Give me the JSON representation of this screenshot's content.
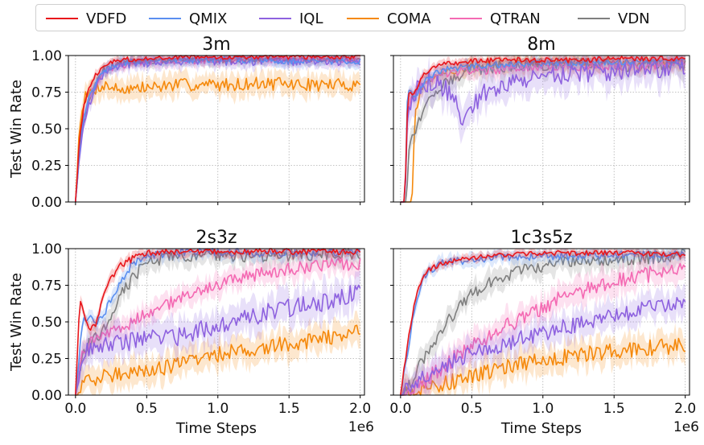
{
  "legend": [
    {
      "name": "VDFD",
      "color": "#e8161b"
    },
    {
      "name": "QMIX",
      "color": "#5b8ff0"
    },
    {
      "name": "IQL",
      "color": "#8e62df"
    },
    {
      "name": "COMA",
      "color": "#f5890c"
    },
    {
      "name": "QTRAN",
      "color": "#f46ab3"
    },
    {
      "name": "VDN",
      "color": "#7f7f7f"
    }
  ],
  "chart_data": [
    {
      "type": "line",
      "title": "3m",
      "xlabel": "",
      "ylabel": "Test Win Rate",
      "xlim": [
        -0.05,
        2.03
      ],
      "ylim": [
        0,
        1
      ],
      "xticks": [
        0,
        0.5,
        1,
        1.5,
        2
      ],
      "yticks": [
        0,
        0.25,
        0.5,
        0.75,
        1
      ],
      "ytick_labels": [
        "0.00",
        "0.25",
        "0.50",
        "0.75",
        "1.00"
      ],
      "series": [
        {
          "name": "COMA",
          "x": [
            0,
            0.03,
            0.06,
            0.1,
            0.15,
            0.2,
            0.3,
            0.5,
            0.7,
            1,
            1.3,
            1.6,
            2
          ],
          "y": [
            0,
            0.55,
            0.7,
            0.74,
            0.78,
            0.8,
            0.77,
            0.78,
            0.8,
            0.8,
            0.81,
            0.8,
            0.8
          ],
          "band": 0.08
        },
        {
          "name": "VDN",
          "x": [
            0,
            0.03,
            0.06,
            0.1,
            0.15,
            0.2,
            0.3,
            0.5,
            0.7,
            1,
            1.3,
            1.6,
            2
          ],
          "y": [
            0,
            0.35,
            0.55,
            0.7,
            0.82,
            0.9,
            0.95,
            0.96,
            0.97,
            0.97,
            0.98,
            0.97,
            0.98
          ],
          "band": 0.04
        },
        {
          "name": "QTRAN",
          "x": [
            0,
            0.03,
            0.06,
            0.1,
            0.15,
            0.2,
            0.3,
            0.5,
            0.7,
            1,
            1.3,
            1.6,
            2
          ],
          "y": [
            0,
            0.4,
            0.6,
            0.72,
            0.82,
            0.88,
            0.93,
            0.96,
            0.96,
            0.97,
            0.97,
            0.97,
            0.97
          ],
          "band": 0.04
        },
        {
          "name": "IQL",
          "x": [
            0,
            0.03,
            0.06,
            0.1,
            0.15,
            0.2,
            0.3,
            0.5,
            0.7,
            1,
            1.3,
            1.6,
            2
          ],
          "y": [
            0,
            0.35,
            0.55,
            0.68,
            0.8,
            0.88,
            0.93,
            0.95,
            0.96,
            0.96,
            0.96,
            0.96,
            0.96
          ],
          "band": 0.05
        },
        {
          "name": "QMIX",
          "x": [
            0,
            0.03,
            0.06,
            0.1,
            0.15,
            0.2,
            0.3,
            0.5,
            0.7,
            1,
            1.3,
            1.6,
            2
          ],
          "y": [
            0,
            0.38,
            0.6,
            0.72,
            0.84,
            0.9,
            0.95,
            0.96,
            0.97,
            0.97,
            0.97,
            0.96,
            0.96
          ],
          "band": 0.04
        },
        {
          "name": "VDFD",
          "x": [
            0,
            0.03,
            0.06,
            0.1,
            0.15,
            0.2,
            0.3,
            0.5,
            0.7,
            1,
            1.3,
            1.6,
            2
          ],
          "y": [
            0,
            0.45,
            0.66,
            0.78,
            0.88,
            0.93,
            0.97,
            0.98,
            0.99,
            0.99,
            0.99,
            0.99,
            0.99
          ],
          "band": 0.03
        }
      ]
    },
    {
      "type": "line",
      "title": "8m",
      "xlabel": "",
      "ylabel": "",
      "xlim": [
        -0.05,
        2.03
      ],
      "ylim": [
        0,
        1
      ],
      "xticks": [
        0,
        0.5,
        1,
        1.5,
        2
      ],
      "yticks": [
        0,
        0.25,
        0.5,
        0.75,
        1
      ],
      "series": [
        {
          "name": "COMA",
          "x": [
            0,
            0.08,
            0.1,
            0.15,
            0.2,
            0.3,
            0.5,
            0.7,
            1,
            1.3,
            1.6,
            2
          ],
          "y": [
            0,
            0,
            0.6,
            0.78,
            0.84,
            0.88,
            0.92,
            0.94,
            0.95,
            0.95,
            0.95,
            0.95
          ],
          "band": 0.05
        },
        {
          "name": "VDN",
          "x": [
            0,
            0.04,
            0.06,
            0.1,
            0.15,
            0.2,
            0.3,
            0.5,
            0.7,
            1,
            1.3,
            1.6,
            2
          ],
          "y": [
            0,
            0,
            0.4,
            0.5,
            0.58,
            0.68,
            0.82,
            0.9,
            0.93,
            0.94,
            0.94,
            0.93,
            0.94
          ],
          "band": 0.08
        },
        {
          "name": "QTRAN",
          "x": [
            0,
            0.03,
            0.05,
            0.1,
            0.15,
            0.2,
            0.3,
            0.5,
            0.7,
            1,
            1.3,
            1.6,
            2
          ],
          "y": [
            0,
            0,
            0.65,
            0.72,
            0.8,
            0.82,
            0.88,
            0.9,
            0.9,
            0.92,
            0.93,
            0.93,
            0.94
          ],
          "band": 0.06
        },
        {
          "name": "IQL",
          "x": [
            0,
            0.03,
            0.05,
            0.1,
            0.2,
            0.3,
            0.4,
            0.43,
            0.5,
            0.6,
            0.7,
            1,
            1.3,
            1.6,
            2
          ],
          "y": [
            0,
            0,
            0.6,
            0.75,
            0.82,
            0.78,
            0.7,
            0.5,
            0.67,
            0.75,
            0.8,
            0.85,
            0.88,
            0.9,
            0.92
          ],
          "band": 0.12
        },
        {
          "name": "QMIX",
          "x": [
            0,
            0.03,
            0.05,
            0.1,
            0.15,
            0.2,
            0.3,
            0.5,
            0.7,
            1,
            1.3,
            1.6,
            2
          ],
          "y": [
            0,
            0,
            0.78,
            0.72,
            0.8,
            0.86,
            0.9,
            0.93,
            0.94,
            0.95,
            0.95,
            0.96,
            0.96
          ],
          "band": 0.04
        },
        {
          "name": "VDFD",
          "x": [
            0,
            0.03,
            0.05,
            0.1,
            0.15,
            0.2,
            0.3,
            0.5,
            0.7,
            1,
            1.3,
            1.6,
            2
          ],
          "y": [
            0,
            0,
            0.72,
            0.75,
            0.85,
            0.9,
            0.94,
            0.96,
            0.97,
            0.97,
            0.97,
            0.98,
            0.98
          ],
          "band": 0.03
        }
      ]
    },
    {
      "type": "line",
      "title": "2s3z",
      "xlabel": "Time Steps",
      "ylabel": "Test Win Rate",
      "xlim": [
        -0.05,
        2.03
      ],
      "ylim": [
        0,
        1
      ],
      "xticks": [
        0,
        0.5,
        1,
        1.5,
        2
      ],
      "xtick_labels": [
        "0.0",
        "0.5",
        "1.0",
        "1.5",
        "2.0"
      ],
      "offset_text": "1e6",
      "yticks": [
        0,
        0.25,
        0.5,
        0.75,
        1
      ],
      "ytick_labels": [
        "0.00",
        "0.25",
        "0.50",
        "0.75",
        "1.00"
      ],
      "series": [
        {
          "name": "COMA",
          "x": [
            0,
            0.05,
            0.1,
            0.2,
            0.3,
            0.5,
            0.7,
            0.9,
            1.1,
            1.3,
            1.5,
            1.7,
            1.9,
            2
          ],
          "y": [
            0,
            0.05,
            0.1,
            0.12,
            0.15,
            0.18,
            0.2,
            0.25,
            0.3,
            0.33,
            0.35,
            0.38,
            0.4,
            0.45
          ],
          "band": 0.1
        },
        {
          "name": "VDN",
          "x": [
            0,
            0.05,
            0.1,
            0.2,
            0.3,
            0.4,
            0.5,
            0.7,
            1,
            1.3,
            1.6,
            2
          ],
          "y": [
            0,
            0.3,
            0.35,
            0.45,
            0.65,
            0.8,
            0.9,
            0.95,
            0.96,
            0.95,
            0.96,
            0.97
          ],
          "band": 0.08
        },
        {
          "name": "QTRAN",
          "x": [
            0,
            0.05,
            0.1,
            0.2,
            0.3,
            0.5,
            0.7,
            0.9,
            1.1,
            1.3,
            1.5,
            1.7,
            2
          ],
          "y": [
            0,
            0.3,
            0.35,
            0.4,
            0.45,
            0.55,
            0.65,
            0.72,
            0.78,
            0.83,
            0.86,
            0.88,
            0.9
          ],
          "band": 0.08
        },
        {
          "name": "IQL",
          "x": [
            0,
            0.05,
            0.1,
            0.2,
            0.3,
            0.5,
            0.7,
            0.9,
            1.1,
            1.3,
            1.5,
            1.7,
            1.9,
            2
          ],
          "y": [
            0,
            0.3,
            0.32,
            0.35,
            0.36,
            0.38,
            0.4,
            0.45,
            0.5,
            0.55,
            0.6,
            0.63,
            0.68,
            0.7
          ],
          "band": 0.12
        },
        {
          "name": "QMIX",
          "x": [
            0,
            0.05,
            0.1,
            0.15,
            0.2,
            0.3,
            0.4,
            0.5,
            0.7,
            1,
            1.3,
            1.6,
            2
          ],
          "y": [
            0,
            0.5,
            0.55,
            0.5,
            0.55,
            0.75,
            0.9,
            0.95,
            0.97,
            0.98,
            0.97,
            0.97,
            0.98
          ],
          "band": 0.05
        },
        {
          "name": "VDFD",
          "x": [
            0,
            0.03,
            0.06,
            0.1,
            0.15,
            0.2,
            0.3,
            0.4,
            0.5,
            0.7,
            1,
            1.3,
            1.6,
            2
          ],
          "y": [
            0,
            0.65,
            0.55,
            0.45,
            0.5,
            0.7,
            0.88,
            0.93,
            0.97,
            0.98,
            0.98,
            0.98,
            0.98,
            0.98
          ],
          "band": 0.04
        }
      ]
    },
    {
      "type": "line",
      "title": "1c3s5z",
      "xlabel": "Time Steps",
      "ylabel": "",
      "xlim": [
        -0.05,
        2.03
      ],
      "ylim": [
        0,
        1
      ],
      "xticks": [
        0,
        0.5,
        1,
        1.5,
        2
      ],
      "xtick_labels": [
        "0.0",
        "0.5",
        "1.0",
        "1.5",
        "2.0"
      ],
      "offset_text": "1e6",
      "yticks": [
        0,
        0.25,
        0.5,
        0.75,
        1
      ],
      "series": [
        {
          "name": "COMA",
          "x": [
            0,
            0.1,
            0.2,
            0.3,
            0.5,
            0.7,
            0.9,
            1.1,
            1.3,
            1.5,
            1.7,
            1.9,
            2
          ],
          "y": [
            0,
            0.02,
            0.05,
            0.08,
            0.12,
            0.18,
            0.22,
            0.25,
            0.28,
            0.3,
            0.32,
            0.33,
            0.35
          ],
          "band": 0.1
        },
        {
          "name": "VDN",
          "x": [
            0,
            0.05,
            0.1,
            0.2,
            0.3,
            0.4,
            0.5,
            0.7,
            0.9,
            1.1,
            1.3,
            1.6,
            2
          ],
          "y": [
            0,
            0.05,
            0.15,
            0.3,
            0.45,
            0.6,
            0.7,
            0.8,
            0.86,
            0.9,
            0.92,
            0.93,
            0.95
          ],
          "band": 0.08
        },
        {
          "name": "QTRAN",
          "x": [
            0,
            0.1,
            0.2,
            0.3,
            0.5,
            0.7,
            0.9,
            1.1,
            1.3,
            1.5,
            1.7,
            2
          ],
          "y": [
            0,
            0.05,
            0.12,
            0.2,
            0.33,
            0.45,
            0.55,
            0.65,
            0.72,
            0.78,
            0.82,
            0.85
          ],
          "band": 0.1
        },
        {
          "name": "IQL",
          "x": [
            0,
            0.1,
            0.2,
            0.3,
            0.5,
            0.7,
            0.9,
            1.1,
            1.3,
            1.5,
            1.7,
            1.9,
            2
          ],
          "y": [
            0,
            0.08,
            0.15,
            0.2,
            0.28,
            0.34,
            0.4,
            0.45,
            0.5,
            0.55,
            0.58,
            0.62,
            0.63
          ],
          "band": 0.1
        },
        {
          "name": "QMIX",
          "x": [
            0,
            0.05,
            0.1,
            0.15,
            0.2,
            0.3,
            0.5,
            0.7,
            1,
            1.3,
            1.6,
            2
          ],
          "y": [
            0,
            0.3,
            0.6,
            0.78,
            0.85,
            0.9,
            0.93,
            0.94,
            0.95,
            0.95,
            0.96,
            0.96
          ],
          "band": 0.05
        },
        {
          "name": "VDFD",
          "x": [
            0,
            0.05,
            0.1,
            0.15,
            0.2,
            0.3,
            0.5,
            0.7,
            1,
            1.3,
            1.6,
            2
          ],
          "y": [
            0,
            0.35,
            0.65,
            0.8,
            0.86,
            0.9,
            0.94,
            0.96,
            0.97,
            0.97,
            0.97,
            0.96
          ],
          "band": 0.03
        }
      ]
    }
  ]
}
